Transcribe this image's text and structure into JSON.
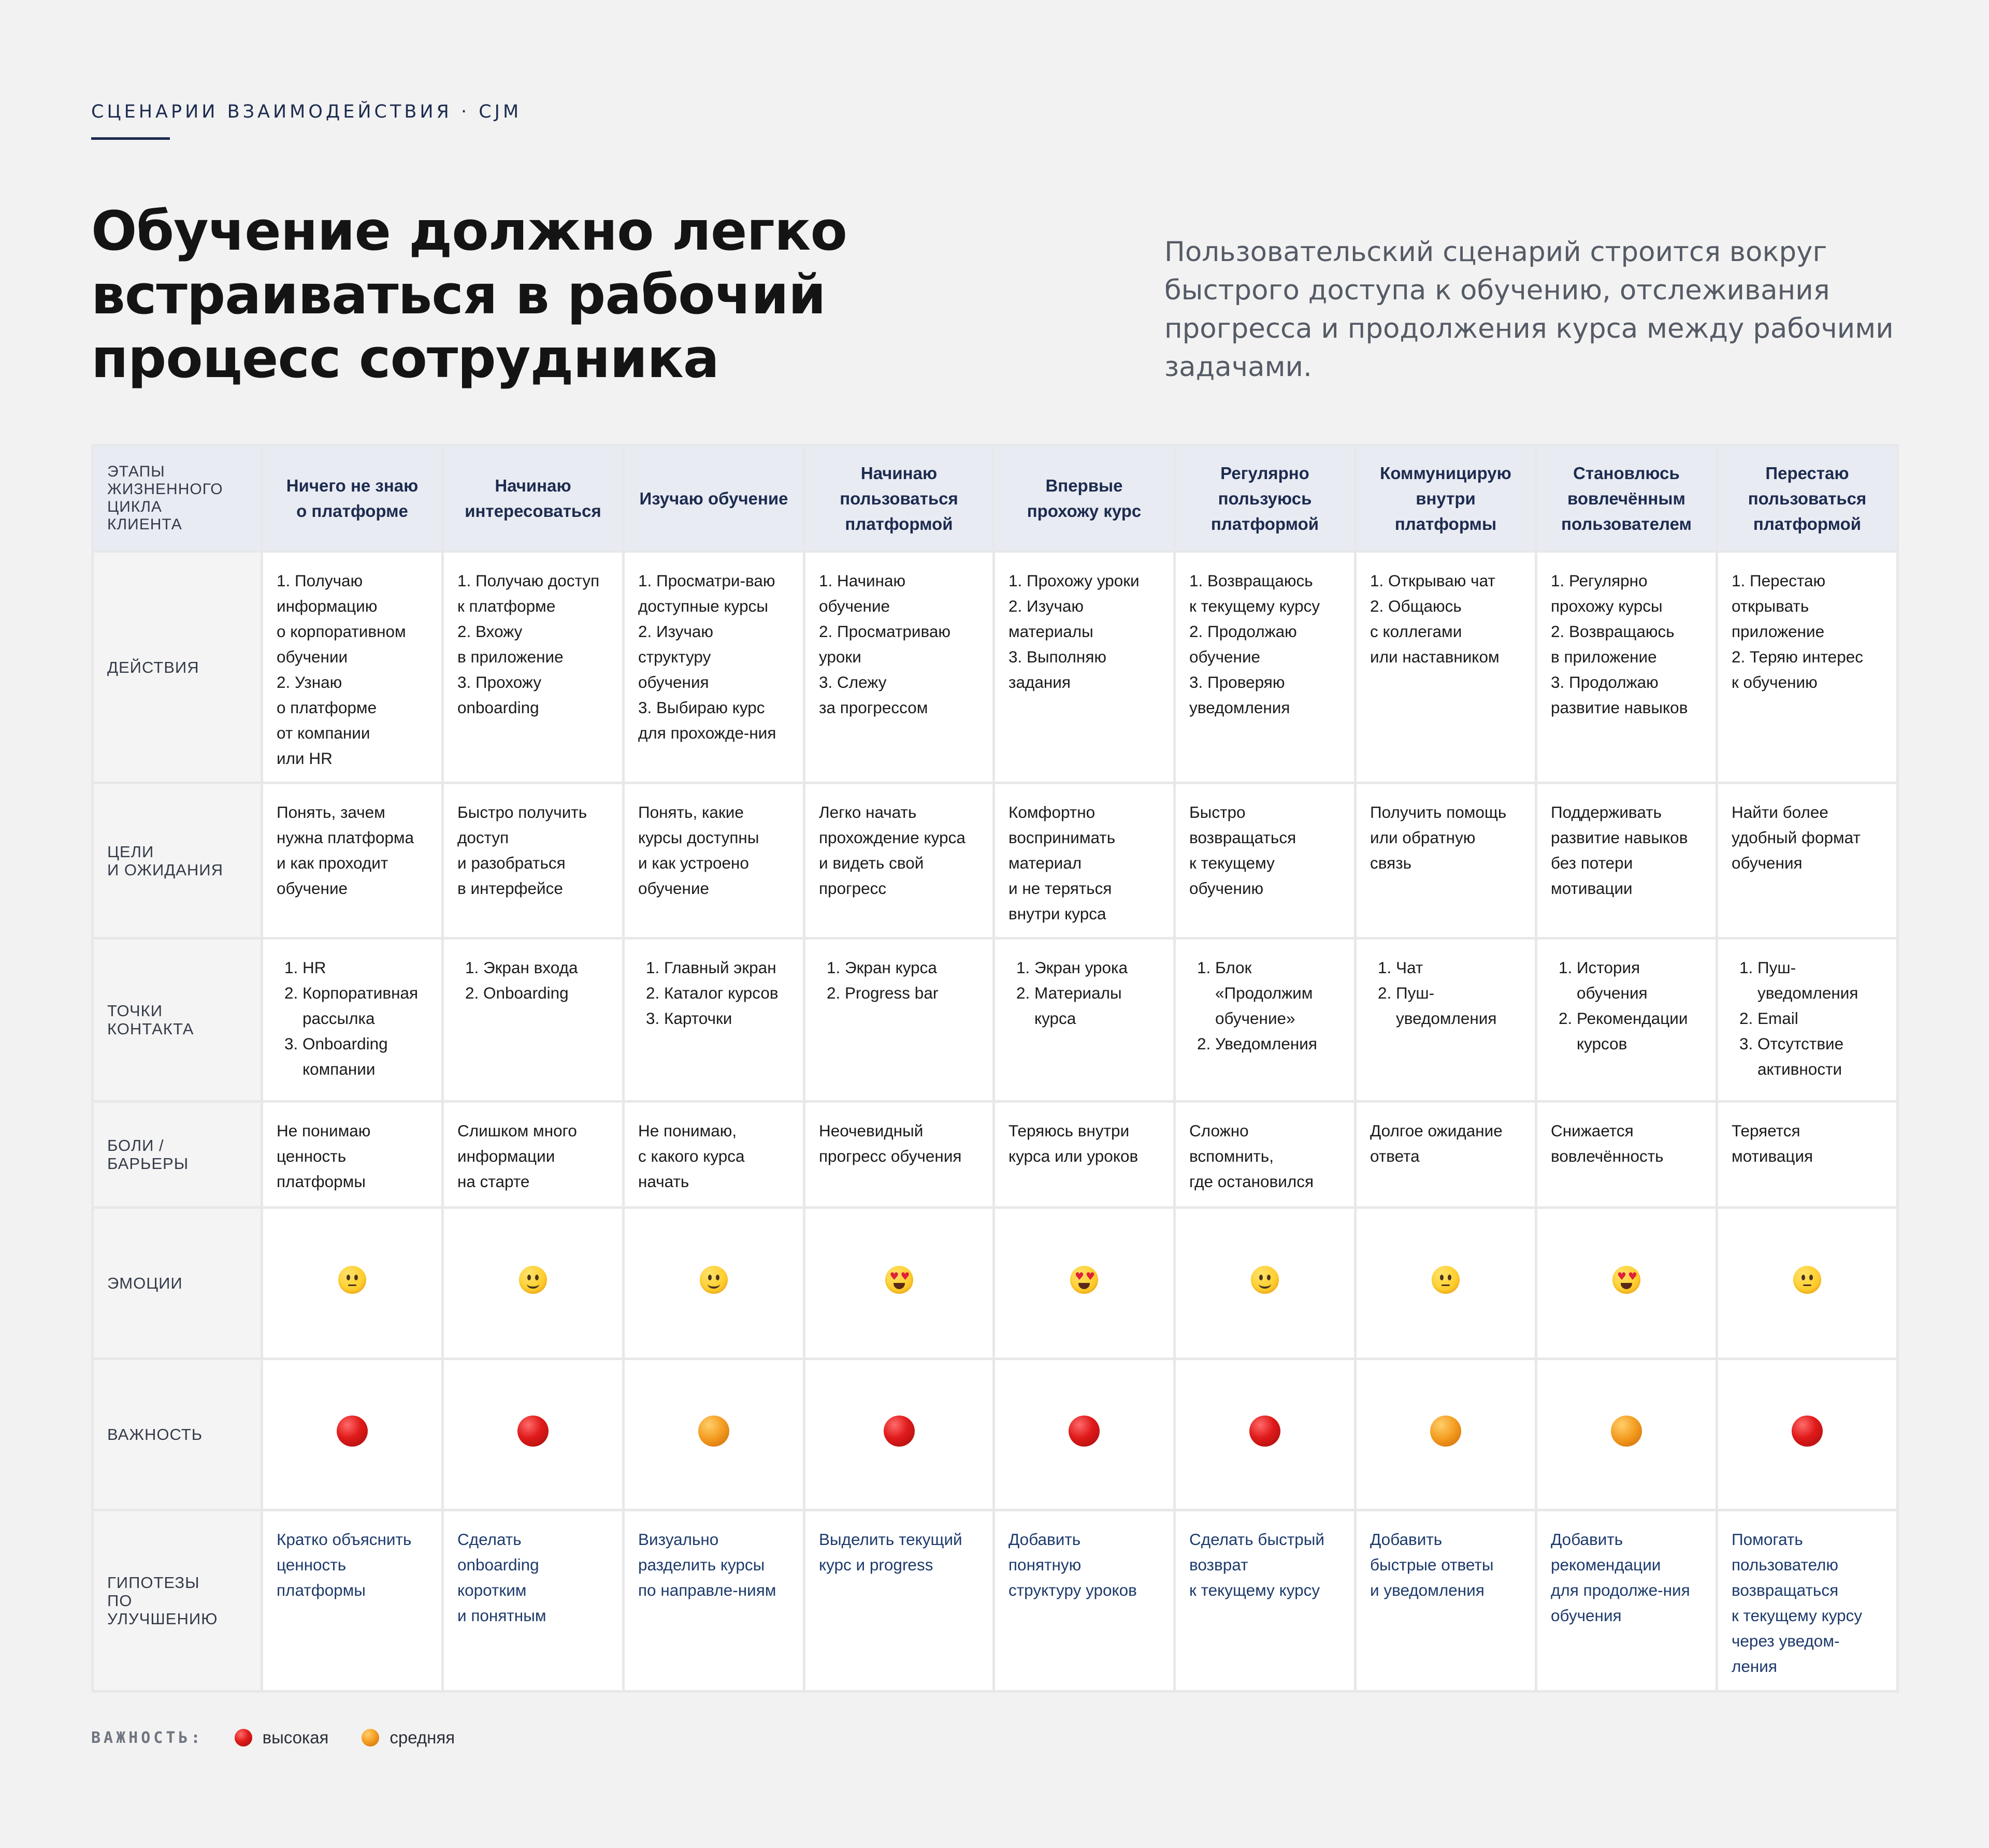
{
  "header": {
    "eyebrow": "СЦЕНАРИИ ВЗАИМОДЕЙСТВИЯ · CJM",
    "title_lines": [
      "Обучение должно легко",
      "встраиваться в рабочий",
      "процесс сотрудника"
    ],
    "intro_lines": [
      "Пользовательский сценарий строится вокруг",
      "быстрого доступа к обучению, отслеживания",
      "прогресса и продолжения курса между рабочими",
      "задачами."
    ]
  },
  "table": {
    "corner_lines": [
      "ЭТАПЫ",
      "ЖИЗНЕННОГО",
      "ЦИКЛА",
      "КЛИЕНТА"
    ],
    "stages": [
      [
        "Ничего не знаю",
        "о платформе"
      ],
      [
        "Начинаю",
        "интересоваться"
      ],
      [
        "Изучаю обучение"
      ],
      [
        "Начинаю",
        "пользоваться",
        "платформой"
      ],
      [
        "Впервые",
        "прохожу курс"
      ],
      [
        "Регулярно",
        "пользуюсь",
        "платформой"
      ],
      [
        "Коммуницирую",
        "внутри",
        "платформы"
      ],
      [
        "Становлюсь",
        "вовлечённым",
        "пользователем"
      ],
      [
        "Перестаю",
        "пользоваться",
        "платформой"
      ]
    ],
    "row_labels": {
      "actions": [
        "ДЕЙСТВИЯ"
      ],
      "goals": [
        "ЦЕЛИ",
        "И ОЖИДАНИЯ"
      ],
      "touchpoints": [
        "ТОЧКИ",
        "КОНТАКТА"
      ],
      "pains": [
        "БОЛИ /",
        "БАРЬЕРЫ"
      ],
      "emotions": [
        "ЭМОЦИИ"
      ],
      "importance": [
        "ВАЖНОСТЬ"
      ],
      "hypotheses": [
        "ГИПОТЕЗЫ",
        "ПО УЛУЧШЕНИЮ"
      ]
    },
    "actions": [
      [
        "1. Получаю",
        "информацию",
        "о корпоративном",
        "обучении",
        "2. Узнаю",
        "о платформе",
        "от компании",
        "или HR"
      ],
      [
        "1. Получаю доступ",
        "к платформе",
        "2. Вхожу",
        "в приложение",
        "3. Прохожу",
        "onboarding"
      ],
      [
        "1. Просматри-ваю",
        "доступные курсы",
        "2. Изучаю",
        "структуру",
        "обучения",
        "3. Выбираю курс",
        "для прохожде-ния"
      ],
      [
        "1. Начинаю",
        "обучение",
        "2. Просматриваю",
        "уроки",
        "3. Слежу",
        "за прогрессом"
      ],
      [
        "1. Прохожу уроки",
        "2. Изучаю",
        "материалы",
        "3. Выполняю",
        "задания"
      ],
      [
        "1. Возвращаюсь",
        "к текущему курсу",
        "2. Продолжаю",
        "обучение",
        "3. Проверяю",
        "уведомления"
      ],
      [
        "1. Открываю чат",
        "2. Общаюсь",
        "с коллегами",
        "или наставником"
      ],
      [
        "1. Регулярно",
        "прохожу курсы",
        "2. Возвращаюсь",
        "в приложение",
        "3. Продолжаю",
        "развитие навыков"
      ],
      [
        "1. Перестаю",
        "открывать",
        "приложение",
        "2. Теряю интерес",
        "к обучению"
      ]
    ],
    "goals": [
      [
        "Понять, зачем",
        "нужна платформа",
        "и как проходит",
        "обучение"
      ],
      [
        "Быстро получить",
        "доступ",
        "и разобраться",
        "в интерфейсе"
      ],
      [
        "Понять, какие",
        "курсы доступны",
        "и как устроено",
        "обучение"
      ],
      [
        "Легко начать",
        "прохождение курса",
        "и видеть свой",
        "прогресс"
      ],
      [
        "Комфортно",
        "воспринимать",
        "материал",
        "и не теряться",
        "внутри курса"
      ],
      [
        "Быстро",
        "возвращаться",
        "к текущему",
        "обучению"
      ],
      [
        "Получить помощь",
        "или обратную",
        "связь"
      ],
      [
        "Поддерживать",
        "развитие навыков",
        "без потери",
        "мотивации"
      ],
      [
        "Найти более",
        "удобный формат",
        "обучения"
      ]
    ],
    "touchpoints": [
      [
        "HR",
        "Корпоративная рассылка",
        "Onboarding компании"
      ],
      [
        "Экран входа",
        "Onboarding"
      ],
      [
        "Главный экран",
        "Каталог курсов",
        "Карточки"
      ],
      [
        "Экран курса",
        "Progress bar"
      ],
      [
        "Экран урока",
        "Материалы курса"
      ],
      [
        "Блок «Продолжим обучение»",
        "Уведомления"
      ],
      [
        "Чат",
        "Пуш-уведомления"
      ],
      [
        "История обучения",
        "Рекомендации курсов"
      ],
      [
        "Пуш-уведомления",
        "Email",
        "Отсутствие активности"
      ]
    ],
    "pains": [
      [
        "Не понимаю",
        "ценность",
        "платформы"
      ],
      [
        "Слишком много",
        "информации",
        "на старте"
      ],
      [
        "Не понимаю,",
        "с какого курса",
        "начать"
      ],
      [
        "Неочевидный",
        "прогресс обучения"
      ],
      [
        "Теряюсь внутри",
        "курса или уроков"
      ],
      [
        "Сложно",
        "вспомнить,",
        "где остановился"
      ],
      [
        "Долгое ожидание",
        "ответа"
      ],
      [
        "Снижается",
        "вовлечённость"
      ],
      [
        "Теряется",
        "мотивация"
      ]
    ],
    "emotions": [
      "neutral-face-icon",
      "slightly-smiling-face-icon",
      "slightly-smiling-face-icon",
      "heart-eyes-face-icon",
      "heart-eyes-face-icon",
      "slightly-smiling-face-icon",
      "neutral-face-icon",
      "heart-eyes-face-icon",
      "neutral-face-icon"
    ],
    "importance": [
      "high",
      "high",
      "medium",
      "high",
      "high",
      "high",
      "medium",
      "medium",
      "high"
    ],
    "hypotheses": [
      [
        "Кратко объяснить",
        "ценность",
        "платформы"
      ],
      [
        "Сделать",
        "onboarding",
        "коротким",
        "и понятным"
      ],
      [
        "Визуально",
        "разделить курсы",
        "по направле-ниям"
      ],
      [
        "Выделить текущий",
        "курс и progress"
      ],
      [
        "Добавить",
        "понятную",
        "структуру уроков"
      ],
      [
        "Сделать быстрый",
        "возврат",
        "к текущему курсу"
      ],
      [
        "Добавить",
        "быстрые ответы",
        "и уведомления"
      ],
      [
        "Добавить",
        "рекомендации",
        "для продолже-ния",
        "обучения"
      ],
      [
        "Помогать",
        "пользователю",
        "возвращаться",
        "к текущему курсу",
        "через уведом-",
        "ления"
      ]
    ]
  },
  "legend": {
    "label": "ВАЖНОСТЬ:",
    "items": [
      {
        "level": "high",
        "text": "высокая",
        "color": "#e01a1a"
      },
      {
        "level": "medium",
        "text": "средняя",
        "color": "#f39a1e"
      }
    ]
  },
  "colors": {
    "background": "#f2f2f2",
    "accent": "#1d2b4f",
    "header_fill": "#e8ebf2",
    "hypothesis_text": "#1d3a6b"
  }
}
